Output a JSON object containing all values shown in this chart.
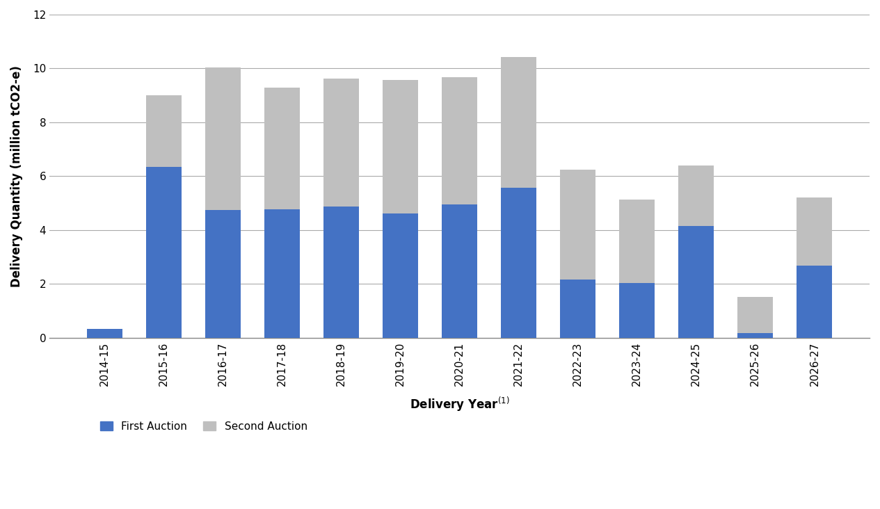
{
  "categories": [
    "2014-15",
    "2015-16",
    "2016-17",
    "2017-18",
    "2018-19",
    "2019-20",
    "2020-21",
    "2021-22",
    "2022-23",
    "2023-24",
    "2024-25",
    "2025-26",
    "2026-27"
  ],
  "first_auction": [
    0.33,
    6.35,
    4.75,
    4.78,
    4.88,
    4.62,
    4.95,
    5.58,
    2.15,
    2.02,
    4.15,
    0.18,
    2.68
  ],
  "second_auction": [
    0.0,
    2.65,
    5.28,
    4.5,
    4.75,
    4.95,
    4.73,
    4.85,
    4.1,
    3.1,
    2.25,
    1.33,
    2.52
  ],
  "first_color": "#4472C4",
  "second_color": "#BFBFBF",
  "ylabel": "Delivery Quantity (million tCO2-e)",
  "xlabel": "Delivery Year",
  "xlabel_super": "(1)",
  "ylim": [
    0,
    12
  ],
  "yticks": [
    0,
    2,
    4,
    6,
    8,
    10,
    12
  ],
  "legend_first": "First Auction",
  "legend_second": "Second Auction",
  "bar_width": 0.6,
  "background_color": "#FFFFFF",
  "grid_color": "#AAAAAA",
  "spine_color": "#888888"
}
